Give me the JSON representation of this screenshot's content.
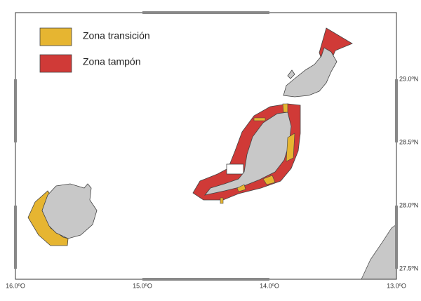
{
  "legend": [
    {
      "label": "Zona transición",
      "color": "#e6b531"
    },
    {
      "label": "Zona tampón",
      "color": "#d03a37"
    }
  ],
  "x_ticks": [
    "16.0ºO",
    "15.0ºO",
    "14.0ºO",
    "13.0ºO"
  ],
  "y_ticks": [
    "29.0ºN",
    "28.5ºN",
    "28.0ºN",
    "27.5ºN"
  ],
  "land_color": "#c8c8c8"
}
